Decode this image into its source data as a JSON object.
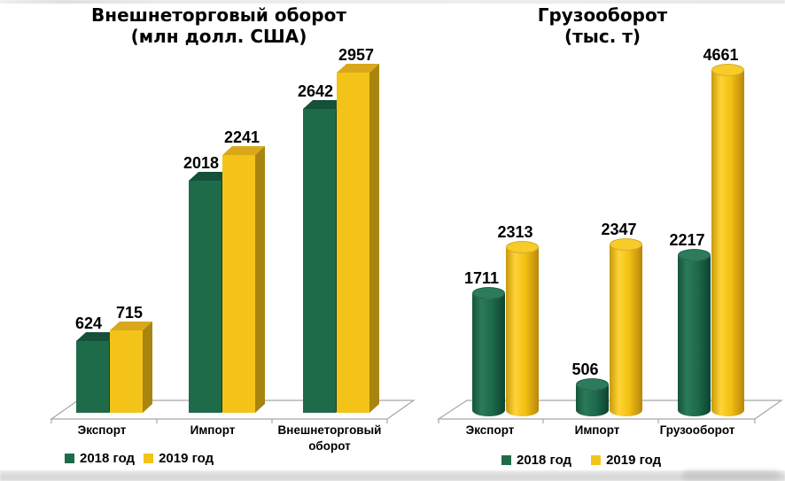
{
  "chart_data": [
    {
      "type": "bar",
      "style": "3d-box",
      "title": "Внешнеторговый оборот",
      "subtitle": "(млн долл. США)",
      "categories": [
        "Экспорт",
        "Импорт",
        "Внешнеторговый оборот"
      ],
      "series": [
        {
          "name": "2018 год",
          "color": "#1E6B4A",
          "values": [
            624,
            2018,
            2642
          ]
        },
        {
          "name": "2019 год",
          "color": "#F4C318",
          "values": [
            715,
            2241,
            2957
          ]
        }
      ],
      "ylim": [
        0,
        3100
      ],
      "grid": false,
      "legend_position": "bottom",
      "data_labels": true
    },
    {
      "type": "bar",
      "style": "3d-cylinder",
      "title": "Грузооборот",
      "subtitle": "(тыс. т)",
      "categories": [
        "Экспорт",
        "Импорт",
        "Грузооборот"
      ],
      "series": [
        {
          "name": "2018 год",
          "color": "#1E6B4A",
          "values": [
            1711,
            506,
            2217
          ]
        },
        {
          "name": "2019 год",
          "color": "#F4C318",
          "values": [
            2313,
            2347,
            4661
          ]
        }
      ],
      "ylim": [
        0,
        4900
      ],
      "grid": false,
      "legend_position": "bottom",
      "data_labels": true
    }
  ],
  "palette": {
    "series": [
      {
        "front": "#1E6B4A",
        "top": "#15503A",
        "side": "#113F2E",
        "grad": [
          "#14553E",
          "#2B7A59",
          "#1D6A4C",
          "#0D4331"
        ],
        "cap": "#2C7C5B",
        "cap_edge": "#0F4936"
      },
      {
        "front": "#F4C318",
        "top": "#D9A81A",
        "side": "#A8850E",
        "grad": [
          "#C79A0A",
          "#FFD338",
          "#F2C011",
          "#B8860B"
        ],
        "cap": "#F7CB28",
        "cap_edge": "#C79B0F"
      }
    ]
  }
}
